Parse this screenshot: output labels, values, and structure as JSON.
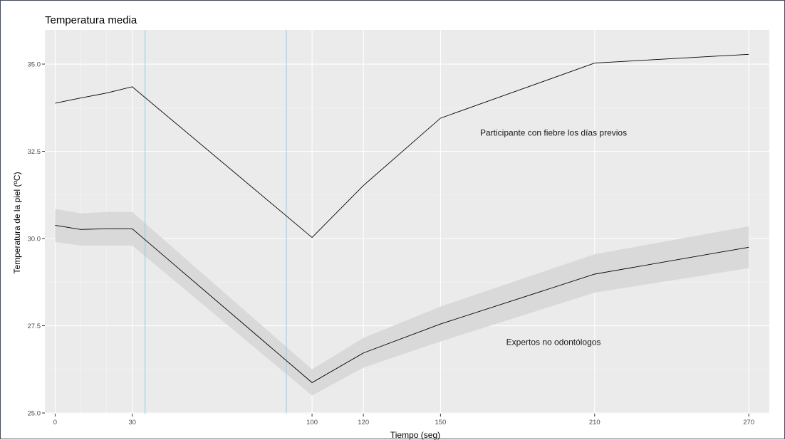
{
  "chart_data": {
    "type": "line",
    "title": "Temperatura media",
    "xlabel": "Tiempo (seg)",
    "ylabel": "Temperatura de la piel (ºC)",
    "xlim": [
      -4,
      278
    ],
    "ylim": [
      24.98,
      35.98
    ],
    "x_ticks": [
      0,
      30,
      100,
      120,
      150,
      210,
      270
    ],
    "x_tick_labels": [
      "0",
      "30",
      "100",
      "120",
      "150",
      "210",
      "270"
    ],
    "y_ticks": [
      25.0,
      27.5,
      30.0,
      32.5,
      35.0
    ],
    "y_tick_labels": [
      "25.0",
      "27.5",
      "30.0",
      "32.5",
      "35.0"
    ],
    "x_minor_gridlines": [
      10,
      20
    ],
    "grid": true,
    "background": "#ebebeb",
    "vlines": [
      {
        "x": 35,
        "color": "#87ceeb"
      },
      {
        "x": 90,
        "color": "#87ceeb"
      }
    ],
    "series": [
      {
        "color": "#000000",
        "x": [
          0,
          10,
          20,
          30,
          100,
          120,
          150,
          210,
          270
        ],
        "y": [
          33.88,
          34.03,
          34.17,
          34.35,
          30.03,
          31.52,
          33.45,
          35.03,
          35.28
        ]
      },
      {
        "color": "#000000",
        "band_color": "#d9d9d9",
        "x": [
          0,
          10,
          20,
          30,
          100,
          120,
          150,
          210,
          270
        ],
        "y": [
          30.38,
          30.26,
          30.28,
          30.28,
          25.87,
          26.72,
          27.55,
          28.98,
          29.75
        ],
        "lower": [
          29.9,
          29.8,
          29.8,
          29.8,
          25.5,
          26.3,
          27.05,
          28.45,
          29.15
        ],
        "upper": [
          30.85,
          30.72,
          30.76,
          30.76,
          26.25,
          27.15,
          28.05,
          29.55,
          30.35
        ]
      }
    ],
    "annotations": [
      {
        "text": "Participante con fiebre los días previos",
        "x": 194,
        "y": 32.95
      },
      {
        "text": "Expertos no odontólogos",
        "x": 194,
        "y": 26.95
      }
    ]
  }
}
